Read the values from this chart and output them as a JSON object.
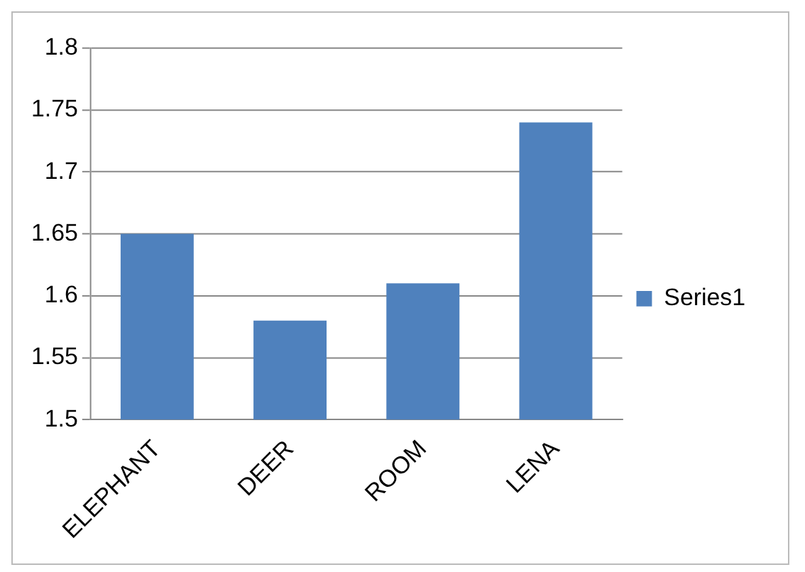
{
  "chart_data": {
    "type": "bar",
    "categories": [
      "ELEPHANT",
      "DEER",
      "ROOM",
      "LENA"
    ],
    "series": [
      {
        "name": "Series1",
        "color": "#4f81bd",
        "values": [
          1.65,
          1.58,
          1.61,
          1.74
        ]
      }
    ],
    "ylim": [
      1.5,
      1.8
    ],
    "yticks": [
      1.5,
      1.55,
      1.6,
      1.65,
      1.7,
      1.75,
      1.8
    ],
    "grid": "y",
    "legend": "right"
  }
}
